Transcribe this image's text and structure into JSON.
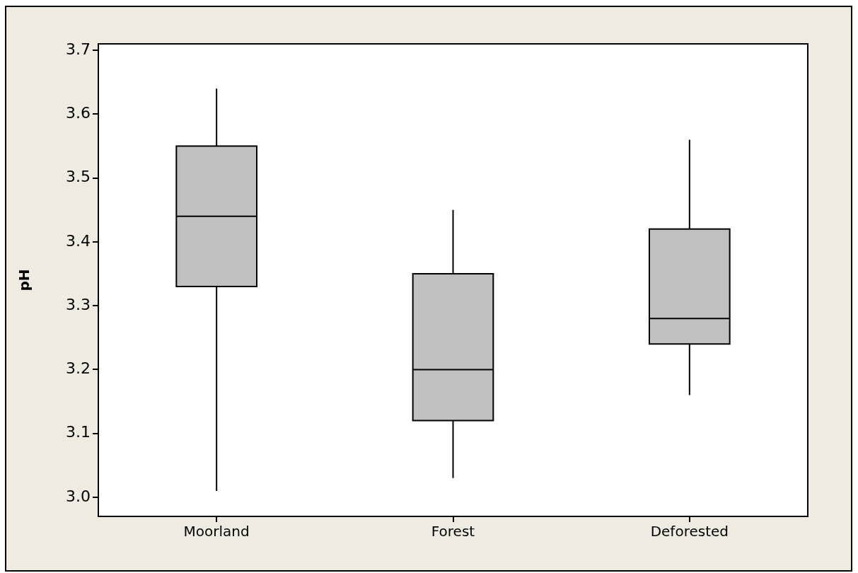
{
  "chart_data": {
    "type": "box",
    "ylabel": "pH",
    "categories": [
      "Moorland",
      "Forest",
      "Deforested"
    ],
    "color": "#c0c0c0",
    "boxes": [
      {
        "low": 3.01,
        "q1": 3.33,
        "median": 3.44,
        "q3": 3.55,
        "high": 3.64
      },
      {
        "low": 3.03,
        "q1": 3.12,
        "median": 3.2,
        "q3": 3.35,
        "high": 3.45
      },
      {
        "low": 3.16,
        "q1": 3.24,
        "median": 3.28,
        "q3": 3.42,
        "high": 3.56
      }
    ],
    "ylim": [
      2.97,
      3.71
    ],
    "yticks": [
      {
        "value": 3,
        "label": "3.0"
      },
      3.1,
      3.2,
      3.3,
      3.4,
      3.5,
      3.6,
      3.7
    ]
  }
}
